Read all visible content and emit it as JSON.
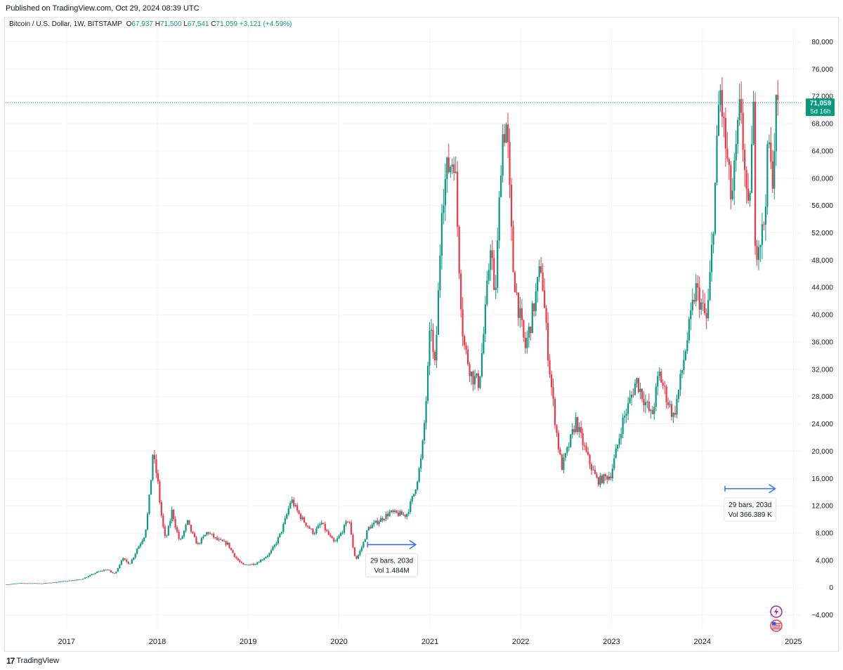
{
  "header": {
    "published": "Published on TradingView.com, Oct 29, 2024 08:39 UTC"
  },
  "legend": {
    "symbol": "Bitcoin / U.S. Dollar, 1W, BITSTAMP",
    "open_label": "O",
    "open": "67,937",
    "high_label": "H",
    "high": "71,500",
    "low_label": "L",
    "low": "67,541",
    "close_label": "C",
    "close": "71,059",
    "change": "+3,121 (+4.59%)"
  },
  "price_tag": {
    "price": "71,059",
    "countdown": "5d 16h"
  },
  "footer": {
    "logo_mark": "17",
    "logo_text": "TradingView"
  },
  "colors": {
    "up": "#089981",
    "down": "#f23645",
    "grid": "#f0f3fa",
    "measure": "#2962ff",
    "last_price": "#089981"
  },
  "icons": [
    "lightning-icon",
    "us-flag-icon"
  ],
  "chart_data": {
    "type": "candlestick",
    "symbol": "Bitcoin / U.S. Dollar",
    "interval": "1W",
    "exchange": "BITSTAMP",
    "x_range": [
      "2016-05-01",
      "2025-01-31"
    ],
    "ylim": [
      -6000,
      82000
    ],
    "y_ticks": [
      -4000,
      0,
      4000,
      8000,
      12000,
      16000,
      20000,
      24000,
      28000,
      32000,
      36000,
      40000,
      44000,
      48000,
      52000,
      56000,
      60000,
      64000,
      68000,
      72000,
      76000,
      80000
    ],
    "y_tick_labels": [
      "−4,000",
      "0",
      "4,000",
      "8,000",
      "12,000",
      "16,000",
      "20,000",
      "24,000",
      "28,000",
      "32,000",
      "36,000",
      "40,000",
      "44,000",
      "48,000",
      "52,000",
      "56,000",
      "60,000",
      "64,000",
      "68,000",
      "72,000",
      "76,000",
      "80,000"
    ],
    "x_ticks": [
      "2017",
      "2018",
      "2019",
      "2020",
      "2021",
      "2022",
      "2023",
      "2024",
      "2025"
    ],
    "last_price": 71059,
    "grid": true,
    "price_path": [
      [
        "2016-05-01",
        450
      ],
      [
        "2016-07-01",
        650
      ],
      [
        "2016-10-01",
        620
      ],
      [
        "2017-01-01",
        970
      ],
      [
        "2017-03-01",
        1200
      ],
      [
        "2017-05-01",
        2200
      ],
      [
        "2017-06-15",
        2700
      ],
      [
        "2017-07-15",
        2000
      ],
      [
        "2017-08-15",
        4300
      ],
      [
        "2017-09-15",
        3500
      ],
      [
        "2017-10-15",
        5700
      ],
      [
        "2017-11-15",
        7800
      ],
      [
        "2017-12-17",
        19600
      ],
      [
        "2018-01-05",
        16000
      ],
      [
        "2018-02-06",
        7000
      ],
      [
        "2018-03-05",
        11400
      ],
      [
        "2018-04-05",
        6700
      ],
      [
        "2018-05-05",
        9700
      ],
      [
        "2018-06-15",
        6300
      ],
      [
        "2018-07-25",
        8200
      ],
      [
        "2018-09-01",
        7000
      ],
      [
        "2018-10-15",
        6400
      ],
      [
        "2018-11-20",
        4200
      ],
      [
        "2018-12-15",
        3300
      ],
      [
        "2019-02-01",
        3500
      ],
      [
        "2019-04-01",
        5000
      ],
      [
        "2019-05-15",
        8000
      ],
      [
        "2019-06-26",
        13000
      ],
      [
        "2019-08-01",
        10500
      ],
      [
        "2019-09-25",
        8000
      ],
      [
        "2019-10-26",
        9500
      ],
      [
        "2019-12-18",
        6500
      ],
      [
        "2020-02-14",
        10300
      ],
      [
        "2020-03-12",
        4100
      ],
      [
        "2020-04-30",
        8700
      ],
      [
        "2020-06-01",
        9500
      ],
      [
        "2020-07-27",
        11000
      ],
      [
        "2020-10-01",
        10600
      ],
      [
        "2020-11-01",
        13800
      ],
      [
        "2020-12-01",
        19000
      ],
      [
        "2021-01-08",
        40000
      ],
      [
        "2021-01-22",
        31000
      ],
      [
        "2021-02-21",
        57000
      ],
      [
        "2021-03-14",
        61000
      ],
      [
        "2021-04-14",
        63500
      ],
      [
        "2021-05-19",
        36000
      ],
      [
        "2021-06-22",
        31000
      ],
      [
        "2021-07-20",
        30000
      ],
      [
        "2021-09-07",
        52000
      ],
      [
        "2021-09-21",
        41000
      ],
      [
        "2021-10-20",
        66000
      ],
      [
        "2021-11-10",
        68000
      ],
      [
        "2021-12-04",
        47000
      ],
      [
        "2022-01-22",
        35000
      ],
      [
        "2022-03-28",
        47500
      ],
      [
        "2022-05-12",
        28000
      ],
      [
        "2022-06-18",
        17600
      ],
      [
        "2022-08-14",
        24500
      ],
      [
        "2022-10-01",
        19000
      ],
      [
        "2022-11-09",
        15600
      ],
      [
        "2022-12-31",
        16500
      ],
      [
        "2023-02-15",
        24000
      ],
      [
        "2023-04-14",
        30500
      ],
      [
        "2023-06-15",
        25000
      ],
      [
        "2023-07-14",
        31500
      ],
      [
        "2023-09-11",
        25000
      ],
      [
        "2023-10-24",
        34000
      ],
      [
        "2023-12-08",
        44000
      ],
      [
        "2024-01-23",
        39000
      ],
      [
        "2024-03-14",
        73800
      ],
      [
        "2024-05-01",
        56500
      ],
      [
        "2024-06-07",
        71900
      ],
      [
        "2024-07-05",
        53500
      ],
      [
        "2024-07-29",
        70000
      ],
      [
        "2024-08-05",
        49500
      ],
      [
        "2024-09-06",
        52500
      ],
      [
        "2024-09-27",
        66000
      ],
      [
        "2024-10-10",
        58900
      ],
      [
        "2024-10-29",
        71500
      ]
    ],
    "annotations": [
      {
        "type": "date-range",
        "from": "2020-04-25",
        "to": "2020-11-05",
        "price": 6300,
        "label": "29 bars, 203d",
        "volume": "Vol 1.484M"
      },
      {
        "type": "date-range",
        "from": "2024-04-01",
        "to": "2024-10-20",
        "price": 14500,
        "label": "29 bars, 203d",
        "volume": "Vol 366.389 K"
      }
    ]
  }
}
